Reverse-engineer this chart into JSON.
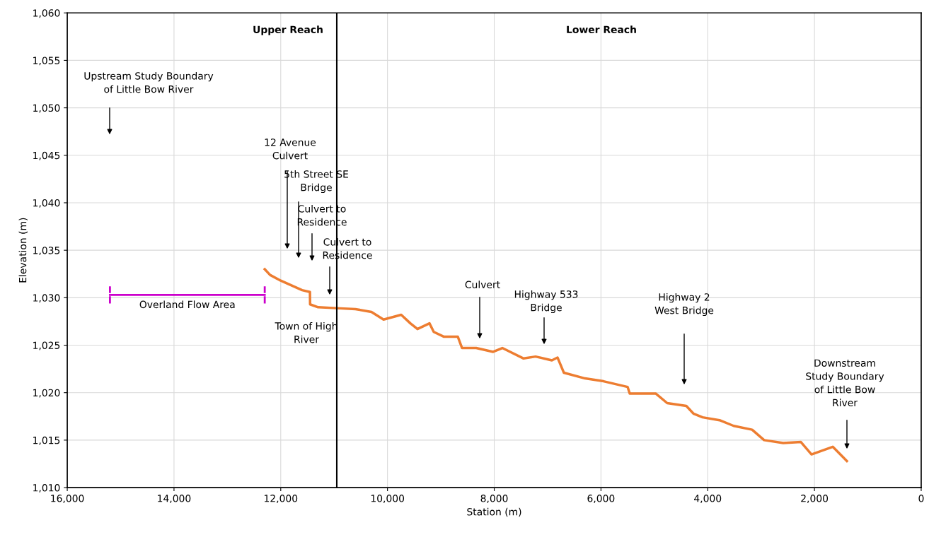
{
  "chart_data": {
    "type": "line",
    "xlabel": "Station (m)",
    "ylabel": "Elevation (m)",
    "xlim": [
      16000,
      0
    ],
    "ylim": [
      1010,
      1060
    ],
    "xticks": [
      {
        "value": 16000,
        "label": "16,000"
      },
      {
        "value": 14000,
        "label": "14,000"
      },
      {
        "value": 12000,
        "label": "12,000"
      },
      {
        "value": 10000,
        "label": "10,000"
      },
      {
        "value": 8000,
        "label": "8,000"
      },
      {
        "value": 6000,
        "label": "6,000"
      },
      {
        "value": 4000,
        "label": "4,000"
      },
      {
        "value": 2000,
        "label": "2,000"
      },
      0
    ],
    "yticks": [
      {
        "value": 1010,
        "label": "1,010"
      },
      {
        "value": 1015,
        "label": "1,015"
      },
      {
        "value": 1020,
        "label": "1,020"
      },
      {
        "value": 1025,
        "label": "1,025"
      },
      {
        "value": 1030,
        "label": "1,030"
      },
      {
        "value": 1035,
        "label": "1,035"
      },
      {
        "value": 1040,
        "label": "1,040"
      },
      {
        "value": 1045,
        "label": "1,045"
      },
      {
        "value": 1050,
        "label": "1,050"
      },
      {
        "value": 1055,
        "label": "1,055"
      },
      {
        "value": 1060,
        "label": "1,060"
      }
    ],
    "grid": true,
    "marker": "none",
    "line_style": "solid",
    "series": [
      {
        "color": "#ed7d31",
        "x": [
          12300,
          12200,
          12000,
          11800,
          11600,
          11453,
          11450,
          11300,
          10957,
          10600,
          10300,
          10074,
          9743,
          9571,
          9438,
          9213,
          9133,
          8948,
          8683,
          8603,
          8338,
          8020,
          7848,
          7450,
          7225,
          6920,
          6814,
          6695,
          6297,
          5952,
          5501,
          5461,
          4971,
          4759,
          4401,
          4268,
          4096,
          3778,
          3513,
          3168,
          2943,
          2585,
          2254,
          2055,
          1657,
          1392
        ],
        "values": [
          1033.0,
          1032.4,
          1031.8,
          1031.3,
          1030.8,
          1030.6,
          1029.3,
          1029.0,
          1028.9,
          1028.8,
          1028.5,
          1027.7,
          1028.2,
          1027.3,
          1026.7,
          1027.3,
          1026.4,
          1025.9,
          1025.9,
          1024.7,
          1024.7,
          1024.3,
          1024.7,
          1023.6,
          1023.8,
          1023.4,
          1023.7,
          1022.1,
          1021.5,
          1021.2,
          1020.6,
          1019.9,
          1019.9,
          1018.9,
          1018.6,
          1017.8,
          1017.4,
          1017.1,
          1016.5,
          1016.1,
          1015.0,
          1014.7,
          1014.8,
          1013.5,
          1014.3,
          1012.8
        ]
      },
      {
        "name": "Overland Flow Area",
        "color": "#cc00cc",
        "x": [
          15200,
          12300
        ],
        "values": [
          1030.3,
          1030.3
        ]
      }
    ],
    "ref_lines": [
      {
        "axis": "x",
        "value": 10950,
        "color": "#000000"
      }
    ],
    "annotations": [
      "Upstream Study Boundary\nof Little Bow River",
      "12 Avenue\nCulvert",
      "5th Street SE\nBridge",
      "Culvert to\nResidence",
      "Culvert to\nResidence",
      "Culvert",
      "Highway 533\nBridge",
      "Highway 2\nWest Bridge",
      "Downstream\nStudy Boundary\nof Little Bow\nRiver",
      "Town of High\nRiver",
      "Upper Reach",
      "Lower Reach"
    ]
  }
}
